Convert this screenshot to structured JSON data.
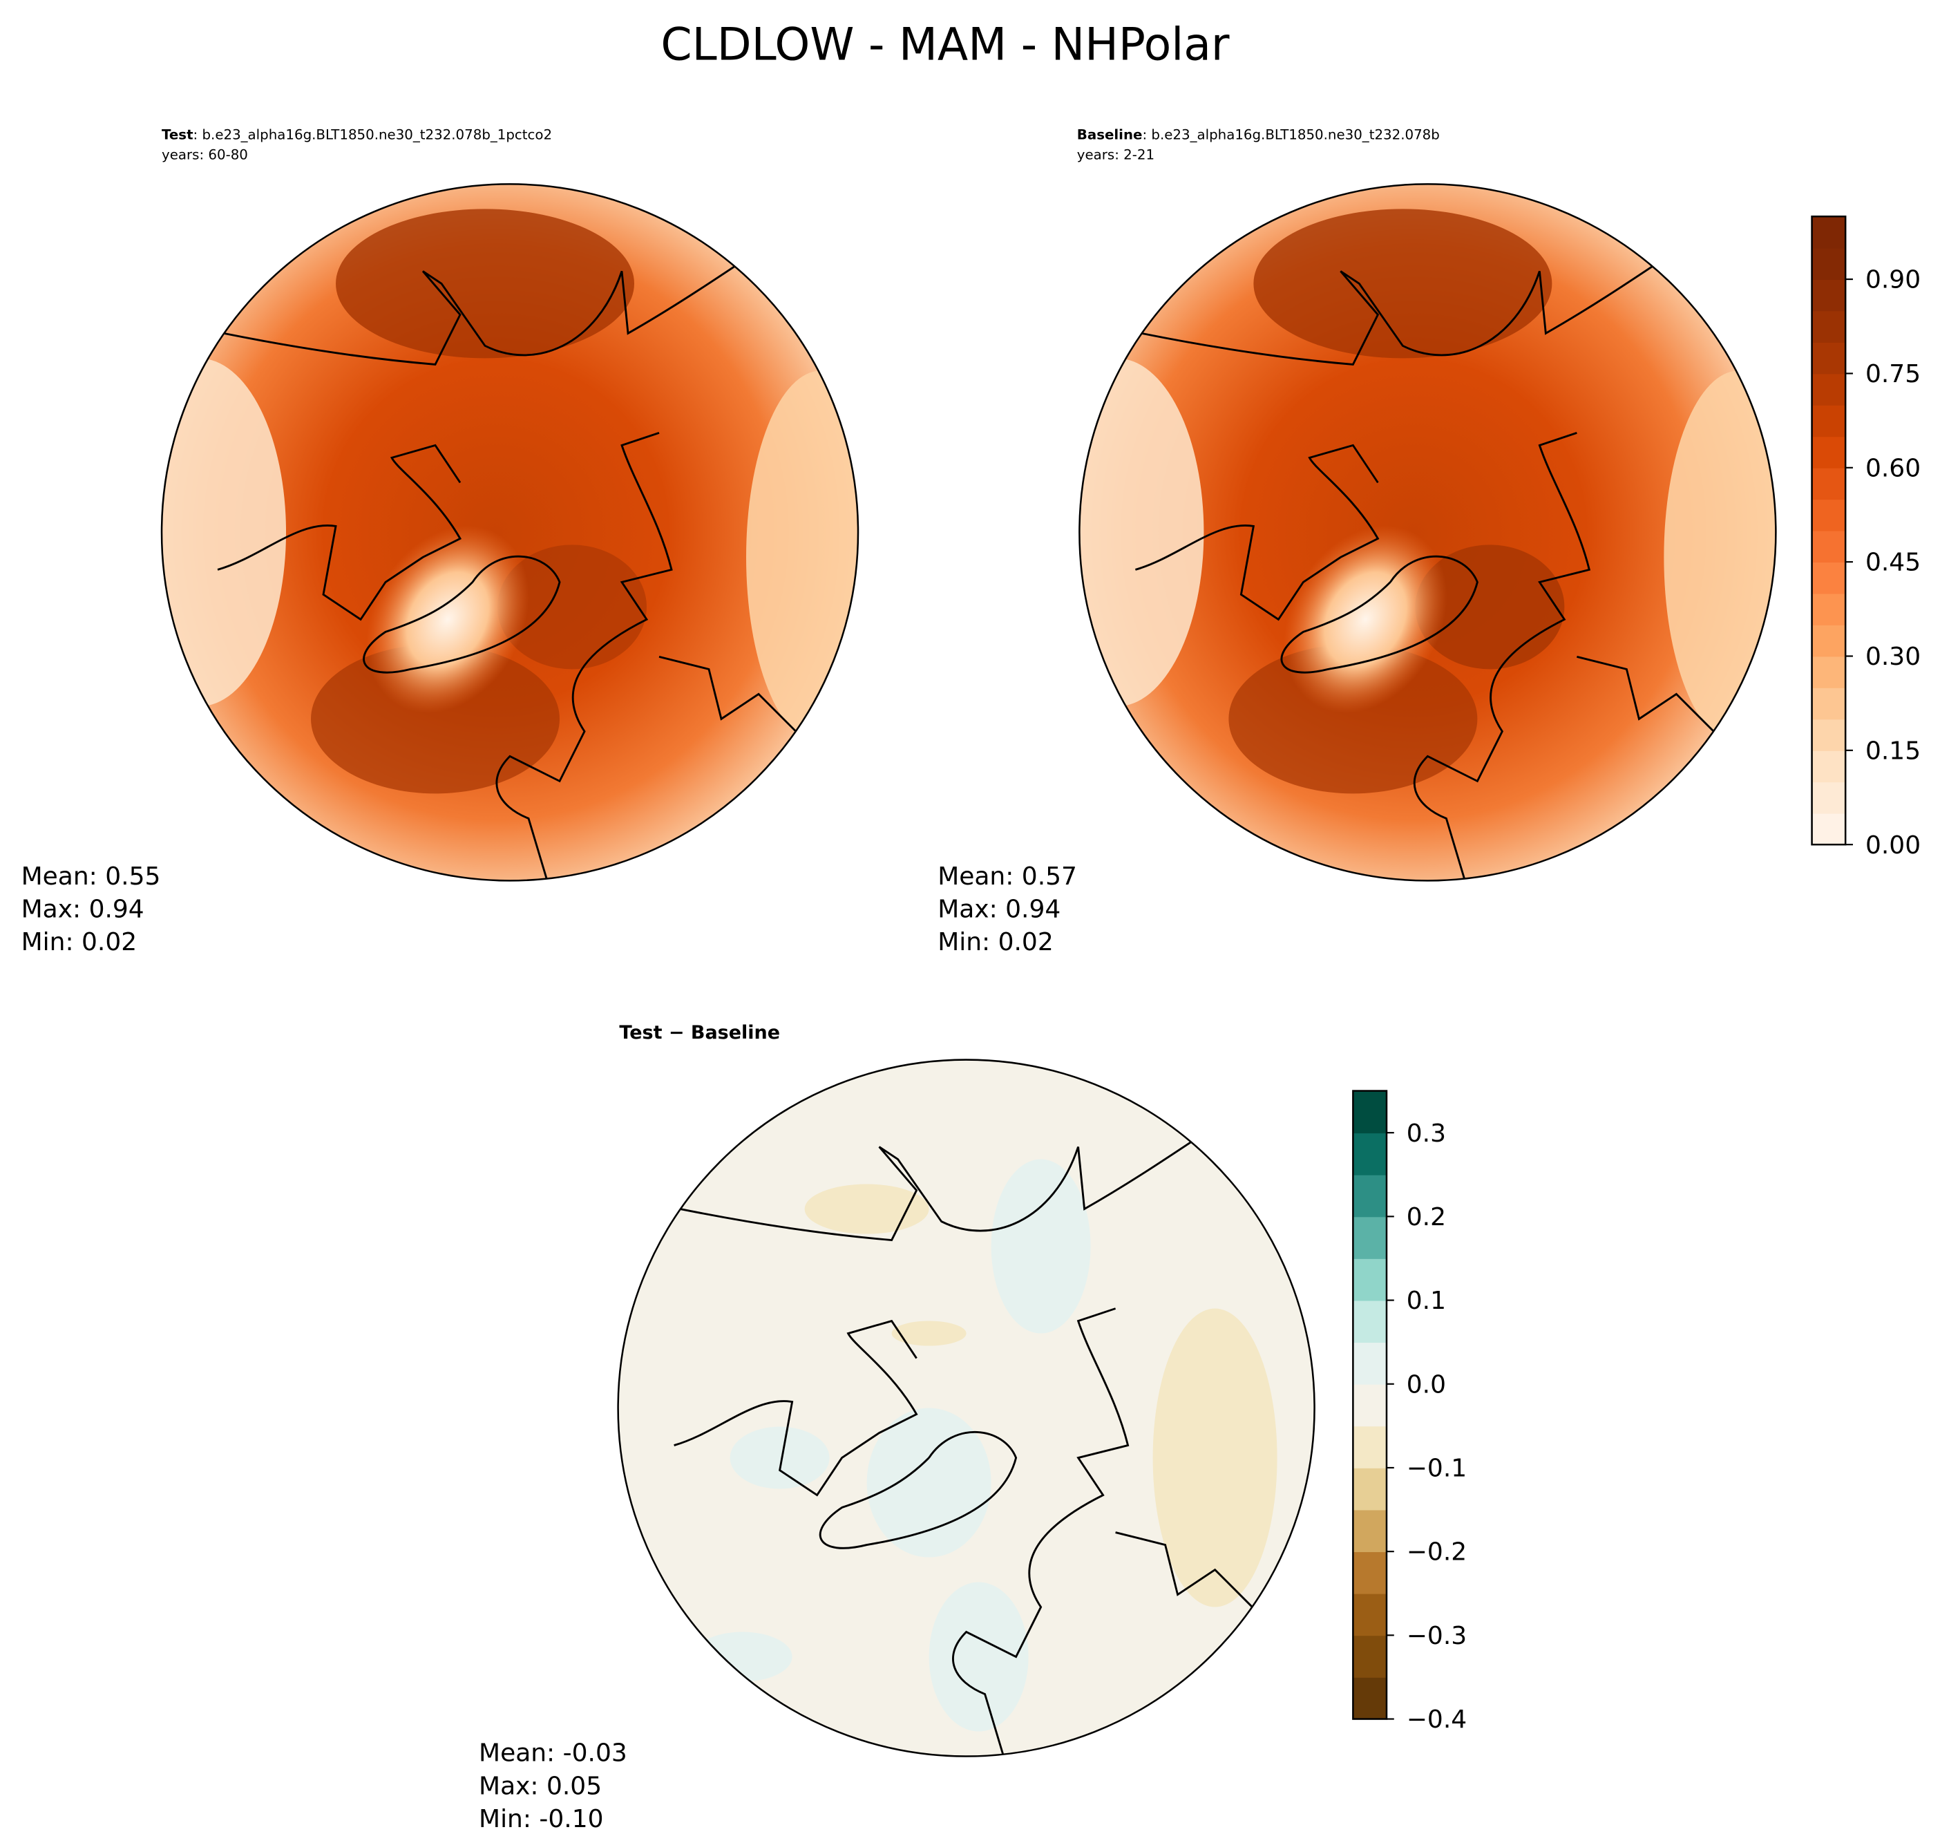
{
  "title": "CLDLOW - MAM - NHPolar",
  "panels": [
    {
      "label": "Test",
      "case": ": b.e23_alpha16g.BLT1850.ne30_t232.078b_1pctco2",
      "years": "years: 60-80",
      "stats": [
        "Mean:  0.55",
        "Max:  0.94",
        "Min:  0.02"
      ]
    },
    {
      "label": "Baseline",
      "case": ": b.e23_alpha16g.BLT1850.ne30_t232.078b",
      "years": "years: 2-21",
      "stats": [
        "Mean:  0.57",
        "Max:  0.94",
        "Min:  0.02"
      ]
    },
    {
      "label": "Test − Baseline",
      "stats": [
        "Mean: -0.03",
        "Max:  0.05",
        "Min: -0.10"
      ]
    }
  ],
  "colorbars": [
    {
      "lim": [
        0,
        1
      ],
      "ticks": [
        {
          "value": 0,
          "label": "0.00"
        },
        {
          "value": 0.15,
          "label": "0.15"
        },
        {
          "value": 0.3,
          "label": "0.30"
        },
        {
          "value": 0.45,
          "label": "0.45"
        },
        {
          "value": 0.6,
          "label": "0.60"
        },
        {
          "value": 0.75,
          "label": "0.75"
        },
        {
          "value": 0.9,
          "label": "0.90"
        }
      ],
      "colors": [
        "#fff2e6",
        "#feead5",
        "#fee2c4",
        "#fdd5ab",
        "#fdc692",
        "#fdb679",
        "#fda461",
        "#fd9450",
        "#fb8240",
        "#f67230",
        "#ef6420",
        "#e55613",
        "#da4a06",
        "#ca4202",
        "#b93c02",
        "#a93703",
        "#9b3203",
        "#8f2d04",
        "#842904",
        "#7f2704"
      ]
    },
    {
      "lim": [
        -0.4,
        0.35
      ],
      "ticks": [
        {
          "value": -0.4,
          "label": "−0.4"
        },
        {
          "value": -0.3,
          "label": "−0.3"
        },
        {
          "value": -0.2,
          "label": "−0.2"
        },
        {
          "value": -0.1,
          "label": "−0.1"
        },
        {
          "value": 0,
          "label": "0.0"
        },
        0.1,
        0.2,
        0.3
      ],
      "colors": [
        "#653a08",
        "#804c0c",
        "#9b5e15",
        "#b7792d",
        "#d1a75e",
        "#e7cf95",
        "#f4e8c6",
        "#f5f2e8",
        "#e6f2ef",
        "#c5eae3",
        "#90d5c9",
        "#5bb2a7",
        "#2d8f85",
        "#0b6f63",
        "#004d40"
      ]
    }
  ]
}
